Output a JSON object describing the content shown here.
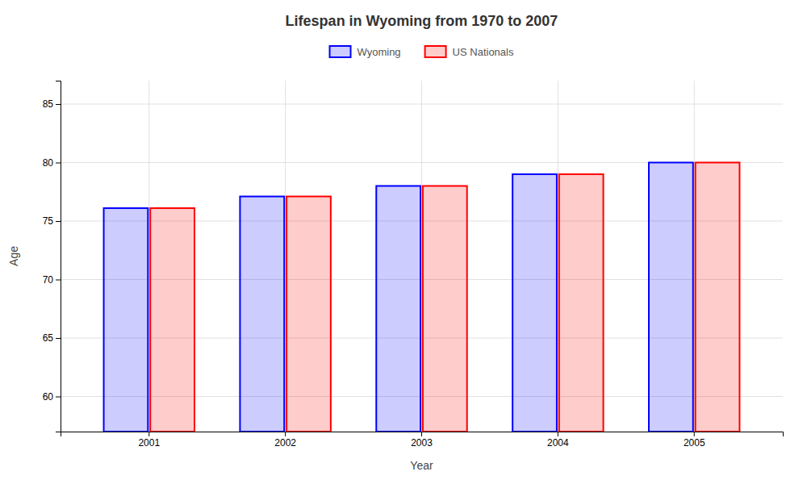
{
  "chart_data": {
    "type": "bar",
    "title": "Lifespan in Wyoming from 1970 to 2007",
    "x_label": "Year",
    "y_label": "Age",
    "categories": [
      "2001",
      "2002",
      "2003",
      "2004",
      "2005"
    ],
    "series": [
      {
        "name": "Wyoming",
        "color": "#0000ff",
        "values": [
          76.1,
          77.1,
          78.0,
          79.0,
          80.0
        ]
      },
      {
        "name": "US Nationals",
        "color": "#ff0000",
        "values": [
          76.1,
          77.1,
          78.0,
          79.0,
          80.0
        ]
      }
    ],
    "ylim": [
      57,
      87
    ],
    "yticks": [
      60,
      65,
      70,
      75,
      80,
      85
    ],
    "grid": true,
    "legend": "top"
  }
}
